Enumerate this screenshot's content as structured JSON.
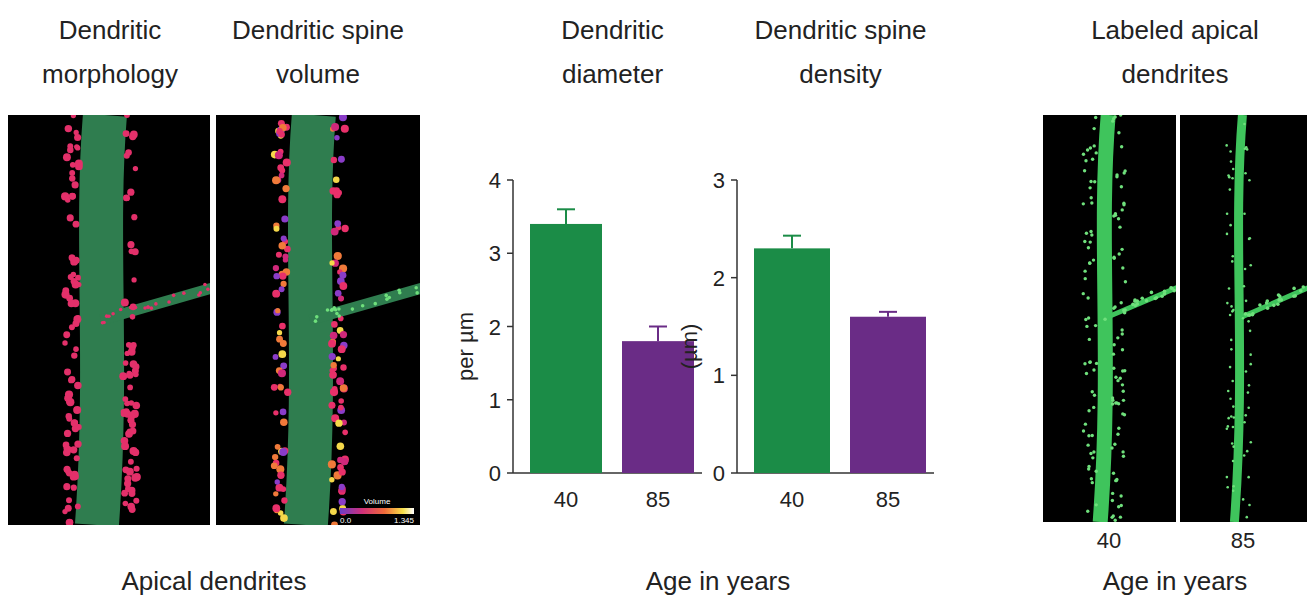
{
  "chart_data": [
    {
      "type": "bar",
      "title": "Dendritic diameter",
      "y_label": "per µm",
      "categories": [
        "40",
        "85"
      ],
      "values": [
        3.4,
        1.8
      ],
      "errors": [
        0.2,
        0.2
      ],
      "colors": [
        "#1b8c47",
        "#6a2c86"
      ],
      "ylim": [
        0,
        4
      ],
      "yticks": [
        0,
        1,
        2,
        3,
        4
      ]
    },
    {
      "type": "bar",
      "title": "Dendritic spine density",
      "y_label": "(µm)",
      "categories": [
        "40",
        "85"
      ],
      "values": [
        2.3,
        1.6
      ],
      "errors": [
        0.13,
        0.05
      ],
      "colors": [
        "#1b8c47",
        "#6a2c86"
      ],
      "ylim": [
        0,
        3
      ],
      "yticks": [
        0,
        1,
        2,
        3
      ]
    }
  ],
  "figure": {
    "charts_x_label": "Age in years",
    "left": {
      "titles": [
        "Dendritic morphology",
        "Dendritic spine volume"
      ],
      "caption": "Apical dendrites",
      "colorbar": {
        "title": "Volume",
        "range": [
          0,
          1.345
        ],
        "ticks": [
          {
            "value": 0,
            "label": "0.0"
          },
          1.345
        ]
      }
    },
    "right": {
      "title": "Labeled apical dendrites",
      "panel_labels": [
        "40",
        "85"
      ],
      "caption": "Age in years"
    }
  }
}
